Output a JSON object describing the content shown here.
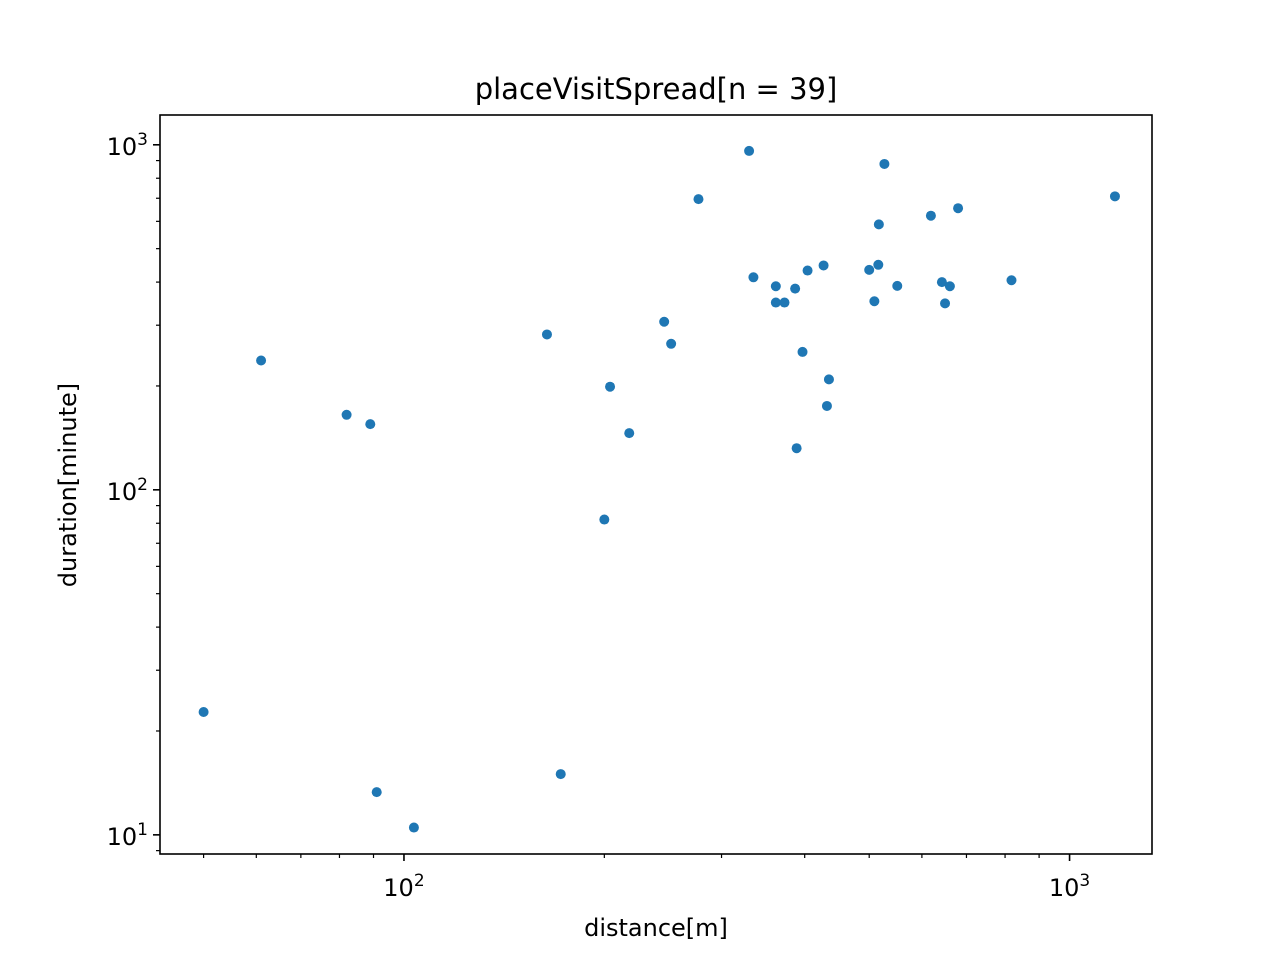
{
  "chart_data": {
    "type": "scatter",
    "title": "placeVisitSpread[n = 39]",
    "xlabel": "distance[m]",
    "ylabel": "duration[minute]",
    "xscale": "log",
    "yscale": "log",
    "xlim": [
      43,
      1330
    ],
    "ylim": [
      8.8,
      1220
    ],
    "grid": false,
    "color": "#1f77b4",
    "x_ticks": [
      {
        "value": 100,
        "base": "10",
        "exp": "2"
      },
      {
        "value": 1000,
        "base": "10",
        "exp": "3"
      }
    ],
    "y_ticks": [
      {
        "value": 10,
        "base": "10",
        "exp": "1"
      },
      {
        "value": 100,
        "base": "10",
        "exp": "2"
      },
      {
        "value": 1000,
        "base": "10",
        "exp": "3"
      }
    ],
    "points": [
      {
        "x": 50,
        "y": 22.7
      },
      {
        "x": 61,
        "y": 237
      },
      {
        "x": 82,
        "y": 165
      },
      {
        "x": 89,
        "y": 155
      },
      {
        "x": 91,
        "y": 13.3
      },
      {
        "x": 103.5,
        "y": 10.5
      },
      {
        "x": 164,
        "y": 282
      },
      {
        "x": 172,
        "y": 15
      },
      {
        "x": 200,
        "y": 82
      },
      {
        "x": 204,
        "y": 199
      },
      {
        "x": 218,
        "y": 146
      },
      {
        "x": 246,
        "y": 307
      },
      {
        "x": 252,
        "y": 265
      },
      {
        "x": 277,
        "y": 696
      },
      {
        "x": 330,
        "y": 960
      },
      {
        "x": 335,
        "y": 413
      },
      {
        "x": 362,
        "y": 389
      },
      {
        "x": 362,
        "y": 349
      },
      {
        "x": 373,
        "y": 349
      },
      {
        "x": 387,
        "y": 383
      },
      {
        "x": 389,
        "y": 132
      },
      {
        "x": 397,
        "y": 251
      },
      {
        "x": 404,
        "y": 432
      },
      {
        "x": 427,
        "y": 447
      },
      {
        "x": 432,
        "y": 175
      },
      {
        "x": 435,
        "y": 209
      },
      {
        "x": 500,
        "y": 434
      },
      {
        "x": 509,
        "y": 352
      },
      {
        "x": 516,
        "y": 449
      },
      {
        "x": 517,
        "y": 588
      },
      {
        "x": 527,
        "y": 880
      },
      {
        "x": 551,
        "y": 390
      },
      {
        "x": 619,
        "y": 623
      },
      {
        "x": 643,
        "y": 400
      },
      {
        "x": 650,
        "y": 347
      },
      {
        "x": 661,
        "y": 389
      },
      {
        "x": 680,
        "y": 655
      },
      {
        "x": 818,
        "y": 405
      },
      {
        "x": 1170,
        "y": 709
      }
    ]
  }
}
